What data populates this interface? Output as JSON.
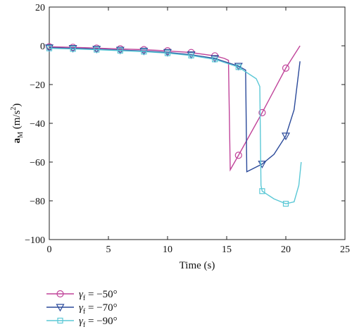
{
  "chart_data": {
    "type": "line",
    "xlabel": "Time (s)",
    "ylabel_main": "a",
    "ylabel_sub": "M",
    "ylabel_units_pre": " (m/s",
    "ylabel_units_sup": "2",
    "ylabel_units_post": ")",
    "xlim": [
      0,
      25
    ],
    "ylim": [
      -100,
      20
    ],
    "xticks": [
      0,
      5,
      10,
      15,
      20,
      25
    ],
    "yticks": [
      20,
      0,
      -20,
      -40,
      -60,
      -80,
      -100
    ],
    "xtick_labels": [
      "0",
      "5",
      "10",
      "15",
      "20",
      "25"
    ],
    "ytick_labels": [
      "20",
      "0",
      "−20",
      "−40",
      "−60",
      "−80",
      "−100"
    ],
    "grid": false,
    "legend_position": "below-left",
    "series": [
      {
        "name": "γf = −50°",
        "legend_symbol": "γ",
        "legend_sub": "f",
        "legend_value": " = −50°",
        "color": "#c0449a",
        "marker": "circle",
        "x": [
          0,
          2,
          4,
          6,
          8,
          10,
          12,
          14,
          14.8,
          15.15,
          15.3,
          16,
          18,
          20,
          21.2
        ],
        "y": [
          -0.5,
          -0.8,
          -1.2,
          -1.6,
          -2.0,
          -2.6,
          -3.5,
          -5.2,
          -6.5,
          -7.5,
          -64,
          -56.5,
          -34.5,
          -11.5,
          0
        ],
        "marker_x": [
          0,
          2,
          4,
          6,
          8,
          10,
          12,
          14,
          16,
          18,
          20
        ],
        "marker_y": [
          -0.5,
          -0.8,
          -1.2,
          -1.6,
          -2.0,
          -2.6,
          -3.5,
          -5.2,
          -56.5,
          -34.5,
          -11.5
        ]
      },
      {
        "name": "γf = −70°",
        "legend_symbol": "γ",
        "legend_sub": "f",
        "legend_value": " = −70°",
        "color": "#2b4a9a",
        "marker": "triangle-down",
        "x": [
          0,
          2,
          4,
          6,
          8,
          10,
          12,
          14,
          16,
          16.6,
          16.7,
          18,
          19,
          20,
          20.7,
          21.2
        ],
        "y": [
          -1.0,
          -1.3,
          -1.7,
          -2.2,
          -2.7,
          -3.4,
          -4.6,
          -6.5,
          -10.5,
          -12.5,
          -65,
          -61,
          -56,
          -46.5,
          -33,
          -8
        ],
        "marker_x": [
          0,
          2,
          4,
          6,
          8,
          10,
          12,
          14,
          16,
          18,
          20
        ],
        "marker_y": [
          -1.0,
          -1.3,
          -1.7,
          -2.2,
          -2.7,
          -3.4,
          -4.6,
          -6.5,
          -10.5,
          -61,
          -46.5
        ]
      },
      {
        "name": "γf = −90°",
        "legend_symbol": "γ",
        "legend_sub": "f",
        "legend_value": " = −90°",
        "color": "#5bc8d6",
        "marker": "square",
        "x": [
          0,
          2,
          4,
          6,
          8,
          10,
          12,
          14,
          16,
          17.5,
          17.8,
          17.9,
          18,
          19,
          20,
          20.7,
          21.1,
          21.3
        ],
        "y": [
          -1.3,
          -1.6,
          -2.0,
          -2.5,
          -3.0,
          -3.8,
          -5.0,
          -7.0,
          -11.0,
          -17.0,
          -21,
          -72,
          -75,
          -79,
          -81.5,
          -80.5,
          -72,
          -60
        ],
        "marker_x": [
          0,
          2,
          4,
          6,
          8,
          10,
          12,
          14,
          16,
          18,
          20
        ],
        "marker_y": [
          -1.3,
          -1.6,
          -2.0,
          -2.5,
          -3.0,
          -3.8,
          -5.0,
          -7.0,
          -11.0,
          -75,
          -81.5
        ]
      }
    ]
  }
}
